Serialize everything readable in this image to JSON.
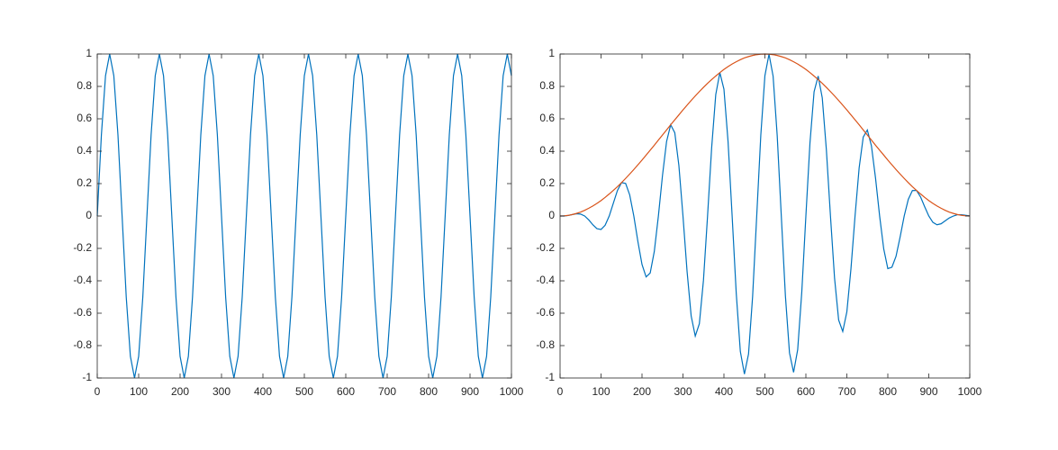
{
  "chart_data": [
    {
      "type": "line",
      "x": [
        0,
        10,
        20,
        30,
        40,
        50,
        60,
        70,
        80,
        90,
        100,
        110,
        120,
        130,
        140,
        150,
        160,
        170,
        180,
        190,
        200,
        210,
        220,
        230,
        240,
        250,
        260,
        270,
        280,
        290,
        300,
        310,
        320,
        330,
        340,
        350,
        360,
        370,
        380,
        390,
        400,
        410,
        420,
        430,
        440,
        450,
        460,
        470,
        480,
        490,
        500,
        510,
        520,
        530,
        540,
        550,
        560,
        570,
        580,
        590,
        600,
        610,
        620,
        630,
        640,
        650,
        660,
        670,
        680,
        690,
        700,
        710,
        720,
        730,
        740,
        750,
        760,
        770,
        780,
        790,
        800,
        810,
        820,
        830,
        840,
        850,
        860,
        870,
        880,
        890,
        900,
        910,
        920,
        930,
        940,
        950,
        960,
        970,
        980,
        990,
        1000
      ],
      "series": [
        {
          "color": "#0072bd",
          "values": [
            0,
            0.5,
            0.866,
            1,
            0.866,
            0.5,
            0,
            -0.5,
            -0.866,
            -1,
            -0.866,
            -0.5,
            0,
            0.5,
            0.866,
            1,
            0.866,
            0.5,
            0,
            -0.5,
            -0.866,
            -1,
            -0.866,
            -0.5,
            0,
            0.5,
            0.866,
            1,
            0.866,
            0.5,
            0,
            -0.5,
            -0.866,
            -1,
            -0.866,
            -0.5,
            0,
            0.5,
            0.866,
            1,
            0.866,
            0.5,
            0,
            -0.5,
            -0.866,
            -1,
            -0.866,
            -0.5,
            0,
            0.5,
            0.866,
            1,
            0.866,
            0.5,
            0,
            -0.5,
            -0.866,
            -1,
            -0.866,
            -0.5,
            0,
            0.5,
            0.866,
            1,
            0.866,
            0.5,
            0,
            -0.5,
            -0.866,
            -1,
            -0.866,
            -0.5,
            0,
            0.5,
            0.866,
            1,
            0.866,
            0.5,
            0,
            -0.5,
            -0.866,
            -1,
            -0.866,
            -0.5,
            0,
            0.5,
            0.866,
            1,
            0.866,
            0.5,
            0,
            -0.5,
            -0.866,
            -1,
            -0.866,
            -0.5,
            0,
            0.5,
            0.866,
            1,
            0.866
          ]
        }
      ],
      "xlim": [
        0,
        1000
      ],
      "xticks": [
        0,
        100,
        200,
        300,
        400,
        500,
        600,
        700,
        800,
        900,
        1000
      ],
      "ylim": [
        -1,
        1
      ],
      "yticks": [
        -1,
        -0.8,
        -0.6,
        -0.4,
        -0.2,
        0,
        0.2,
        0.4,
        0.6,
        0.8,
        1
      ]
    },
    {
      "type": "line",
      "x": [
        0,
        10,
        20,
        30,
        40,
        50,
        60,
        70,
        80,
        90,
        100,
        110,
        120,
        130,
        140,
        150,
        160,
        170,
        180,
        190,
        200,
        210,
        220,
        230,
        240,
        250,
        260,
        270,
        280,
        290,
        300,
        310,
        320,
        330,
        340,
        350,
        360,
        370,
        380,
        390,
        400,
        410,
        420,
        430,
        440,
        450,
        460,
        470,
        480,
        490,
        500,
        510,
        520,
        530,
        540,
        550,
        560,
        570,
        580,
        590,
        600,
        610,
        620,
        630,
        640,
        650,
        660,
        670,
        680,
        690,
        700,
        710,
        720,
        730,
        740,
        750,
        760,
        770,
        780,
        790,
        800,
        810,
        820,
        830,
        840,
        850,
        860,
        870,
        880,
        890,
        900,
        910,
        920,
        930,
        940,
        950,
        960,
        970,
        980,
        990,
        1000
      ],
      "series": [
        {
          "color": "#0072bd",
          "values": [
            0,
            0,
            0.003,
            0.009,
            0.014,
            0.012,
            0,
            -0.024,
            -0.054,
            -0.078,
            -0.083,
            -0.057,
            0,
            0.079,
            0.157,
            0.206,
            0.201,
            0.13,
            0,
            -0.158,
            -0.299,
            -0.376,
            -0.352,
            -0.219,
            0,
            0.25,
            0.46,
            0.563,
            0.514,
            0.312,
            0,
            -0.342,
            -0.617,
            -0.741,
            -0.665,
            -0.397,
            0,
            0.421,
            0.749,
            0.885,
            0.783,
            0.461,
            0,
            -0.476,
            -0.836,
            -0.976,
            -0.852,
            -0.496,
            0,
            0.5,
            0.866,
            0.999,
            0.863,
            0.496,
            0,
            -0.492,
            -0.845,
            -0.965,
            -0.825,
            -0.469,
            0,
            0.452,
            0.767,
            0.864,
            0.729,
            0.409,
            0,
            -0.384,
            -0.642,
            -0.713,
            -0.592,
            -0.327,
            0,
            0.297,
            0.487,
            0.531,
            0.433,
            0.234,
            0,
            -0.203,
            -0.325,
            -0.316,
            -0.249,
            -0.13,
            0,
            0.103,
            0.157,
            0.158,
            0.117,
            0.057,
            0,
            -0.039,
            -0.054,
            -0.048,
            -0.03,
            -0.012,
            0,
            0.008,
            0.008,
            0.004,
            0.001
          ]
        },
        {
          "color": "#d95319",
          "values": [
            0,
            0.001,
            0.004,
            0.009,
            0.016,
            0.024,
            0.035,
            0.048,
            0.062,
            0.078,
            0.095,
            0.115,
            0.136,
            0.158,
            0.181,
            0.206,
            0.232,
            0.259,
            0.287,
            0.316,
            0.345,
            0.376,
            0.406,
            0.437,
            0.469,
            0.5,
            0.531,
            0.563,
            0.594,
            0.624,
            0.655,
            0.684,
            0.713,
            0.741,
            0.768,
            0.794,
            0.819,
            0.842,
            0.864,
            0.885,
            0.905,
            0.922,
            0.938,
            0.952,
            0.965,
            0.976,
            0.984,
            0.991,
            0.996,
            0.999,
            1,
            0.999,
            0.996,
            0.991,
            0.984,
            0.976,
            0.965,
            0.952,
            0.938,
            0.922,
            0.905,
            0.885,
            0.864,
            0.842,
            0.819,
            0.794,
            0.768,
            0.741,
            0.713,
            0.684,
            0.655,
            0.624,
            0.594,
            0.563,
            0.531,
            0.5,
            0.469,
            0.437,
            0.406,
            0.376,
            0.345,
            0.316,
            0.287,
            0.259,
            0.232,
            0.206,
            0.181,
            0.158,
            0.136,
            0.115,
            0.095,
            0.078,
            0.062,
            0.048,
            0.035,
            0.024,
            0.016,
            0.009,
            0.004,
            0.001,
            0
          ]
        }
      ],
      "xlim": [
        0,
        1000
      ],
      "xticks": [
        0,
        100,
        200,
        300,
        400,
        500,
        600,
        700,
        800,
        900,
        1000
      ],
      "ylim": [
        -1,
        1
      ],
      "yticks": [
        -1,
        -0.8,
        -0.6,
        -0.4,
        -0.2,
        0,
        0.2,
        0.4,
        0.6,
        0.8,
        1
      ]
    }
  ]
}
